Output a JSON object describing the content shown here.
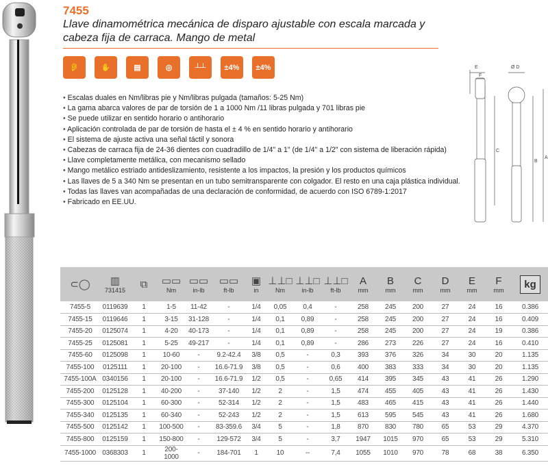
{
  "header": {
    "code": "7455",
    "title": "Llave dinamométrica mecánica de disparo ajustable con escala marcada y cabeza fija de carraca. Mango de metal"
  },
  "accent": "#e8702a",
  "feature_icons": [
    {
      "name": "ear-icon",
      "label": ""
    },
    {
      "name": "hand-icon",
      "label": ""
    },
    {
      "name": "certificate-icon",
      "label": ""
    },
    {
      "name": "ratchet-head-icon",
      "label": ""
    },
    {
      "name": "dual-scale-icon",
      "label": ""
    },
    {
      "name": "accuracy-clockwise-icon",
      "label": "±4%"
    },
    {
      "name": "accuracy-counterclockwise-icon",
      "label": "±4%"
    }
  ],
  "bullets": [
    "Escalas duales en Nm/libras pie y Nm/libras pulgada (tamaños: 5-25 Nm)",
    "La gama abarca valores de par de torsión de 1 a 1000 Nm /11 libras pulgada y 701 libras pie",
    "Se puede utilizar en sentido horario o antihorario",
    "Aplicación controlada de par de torsión de hasta el ± 4 % en sentido horario y antihorario",
    "El sistema de ajuste activa una señal táctil y sonora",
    "Cabezas de carraca fija de 24-36 dientes con cuadradillo de 1/4\" a 1\" (de 1/4\" a 1/2\" con sistema de liberación rápida)",
    "Llave completamente metálica, con mecanismo sellado",
    "Mango metálico estriado antideslizamiento, resistente a los impactos, la presión y los productos químicos",
    "Las llaves de 5 a 340 Nm se presentan en un tubo semitransparente con colgador. El resto en una caja plástica individual.",
    "Todas las llaves van acompañadas de una declaración de conformidad, de acuerdo con ISO 6789-1:2017",
    "Fabricado en EE.UU."
  ],
  "diagram": {
    "labels": [
      "E",
      "F",
      "Ø D",
      "C",
      "B",
      "A"
    ]
  },
  "table": {
    "headers": [
      {
        "icon": "fish-icon",
        "top": "",
        "unit": ""
      },
      {
        "icon": "barcode-icon",
        "top": "",
        "unit": "731415"
      },
      {
        "icon": "package-icon",
        "top": "",
        "unit": ""
      },
      {
        "icon": "scale-icon",
        "top": "",
        "unit": "Nm"
      },
      {
        "icon": "scale-icon",
        "top": "",
        "unit": "in-lb"
      },
      {
        "icon": "scale-icon",
        "top": "",
        "unit": "ft-lb"
      },
      {
        "icon": "square-drive-icon",
        "top": "",
        "unit": "in"
      },
      {
        "icon": "increment-icon",
        "top": "",
        "unit": "Nm"
      },
      {
        "icon": "increment-icon",
        "top": "",
        "unit": "in-lb"
      },
      {
        "icon": "increment-icon",
        "top": "",
        "unit": "ft-lb"
      },
      {
        "icon": "",
        "top": "A",
        "unit": "mm"
      },
      {
        "icon": "",
        "top": "B",
        "unit": "mm"
      },
      {
        "icon": "",
        "top": "C",
        "unit": "mm"
      },
      {
        "icon": "",
        "top": "D",
        "unit": "mm"
      },
      {
        "icon": "",
        "top": "E",
        "unit": "mm"
      },
      {
        "icon": "",
        "top": "F",
        "unit": "mm"
      },
      {
        "icon": "weight-icon",
        "top": "kg",
        "unit": ""
      }
    ],
    "rows": [
      [
        "7455-5",
        "0119639",
        "1",
        "1-5",
        "11-42",
        "-",
        "1/4",
        "0,05",
        "0,4",
        "-",
        "258",
        "245",
        "200",
        "27",
        "24",
        "16",
        "0.386"
      ],
      [
        "7455-15",
        "0119646",
        "1",
        "3-15",
        "31-128",
        "-",
        "1/4",
        "0,1",
        "0,89",
        "-",
        "258",
        "245",
        "200",
        "27",
        "24",
        "16",
        "0.409"
      ],
      [
        "7455-20",
        "0125074",
        "1",
        "4-20",
        "40-173",
        "-",
        "1/4",
        "0,1",
        "0,89",
        "-",
        "258",
        "245",
        "200",
        "27",
        "24",
        "19",
        "0.386"
      ],
      [
        "7455-25",
        "0125081",
        "1",
        "5-25",
        "49-217",
        "-",
        "1/4",
        "0,1",
        "0,89",
        "-",
        "286",
        "273",
        "226",
        "27",
        "24",
        "16",
        "0.410"
      ],
      [
        "7455-60",
        "0125098",
        "1",
        "10-60",
        "-",
        "9.2-42.4",
        "3/8",
        "0,5",
        "-",
        "0,3",
        "393",
        "376",
        "326",
        "34",
        "30",
        "20",
        "1.135"
      ],
      [
        "7455-100",
        "0125111",
        "1",
        "20-100",
        "-",
        "16.6-71.9",
        "3/8",
        "0,5",
        "-",
        "0,6",
        "400",
        "383",
        "333",
        "34",
        "30",
        "20",
        "1.135"
      ],
      [
        "7455-100A",
        "0340156",
        "1",
        "20-100",
        "-",
        "16.6-71.9",
        "1/2",
        "0,5",
        "-",
        "0,65",
        "414",
        "395",
        "345",
        "43",
        "41",
        "26",
        "1.290"
      ],
      [
        "7455-200",
        "0125128",
        "1",
        "40-200",
        "-",
        "37-140",
        "1/2",
        "2",
        "-",
        "1,5",
        "474",
        "455",
        "405",
        "43",
        "41",
        "26",
        "1.430"
      ],
      [
        "7455-300",
        "0125104",
        "1",
        "60-300",
        "-",
        "52-314",
        "1/2",
        "2",
        "-",
        "1,5",
        "483",
        "465",
        "415",
        "43",
        "41",
        "26",
        "1.440"
      ],
      [
        "7455-340",
        "0125135",
        "1",
        "60-340",
        "-",
        "52-243",
        "1/2",
        "2",
        "-",
        "1,5",
        "613",
        "595",
        "545",
        "43",
        "41",
        "26",
        "1.680"
      ],
      [
        "7455-500",
        "0125142",
        "1",
        "100-500",
        "-",
        "83-359.6",
        "3/4",
        "5",
        "-",
        "1,8",
        "870",
        "830",
        "780",
        "65",
        "53",
        "29",
        "4.370"
      ],
      [
        "7455-800",
        "0125159",
        "1",
        "150-800",
        "-",
        "129-572",
        "3/4",
        "5",
        "-",
        "3,7",
        "1947",
        "1015",
        "970",
        "65",
        "53",
        "29",
        "5.310"
      ],
      [
        "7455-1000",
        "0368303",
        "1",
        "200-1000",
        "-",
        "184-701",
        "1",
        "10",
        "--",
        "7,4",
        "1055",
        "1010",
        "970",
        "78",
        "68",
        "38",
        "6.350"
      ]
    ]
  }
}
